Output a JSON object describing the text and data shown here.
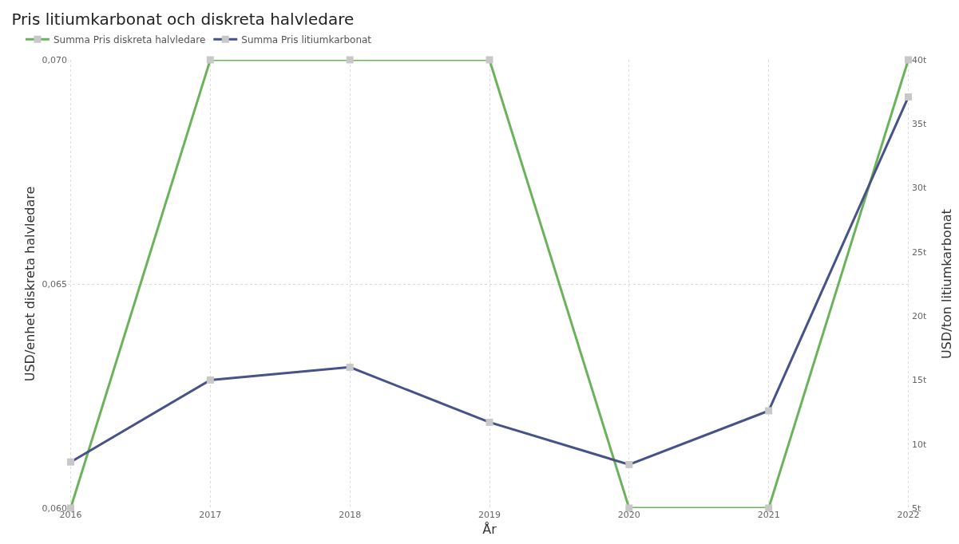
{
  "chart_data": {
    "type": "line",
    "title": "Pris litiumkarbonat och diskreta halvledare",
    "xlabel": "År",
    "ylabel": "USD/enhet diskreta halvledare",
    "y2label": "USD/ton litiumkarbonat",
    "categories": [
      "2016",
      "2017",
      "2018",
      "2019",
      "2020",
      "2021",
      "2022"
    ],
    "series": [
      {
        "name": "Summa Pris diskreta halvledare",
        "color": "#6bb35a",
        "values": [
          0.06,
          0.07,
          0.07,
          0.07,
          0.06,
          0.06,
          0.07
        ]
      },
      {
        "name": "Summa Pris litiumkarbonat",
        "color": "#465288",
        "axis": "y2",
        "values": [
          8.6,
          15,
          16,
          11.7,
          8.4,
          12.6,
          37.1
        ]
      }
    ],
    "ylim": [
      0.06,
      0.07
    ],
    "yticks": [
      {
        "value": 0.06,
        "label": "0,060"
      },
      {
        "value": 0.065,
        "label": "0,065"
      },
      {
        "value": 0.07,
        "label": "0,070"
      }
    ],
    "y2lim": [
      5,
      40
    ],
    "y2ticks": [
      {
        "value": 5,
        "label": "5t"
      },
      {
        "value": 10,
        "label": "10t"
      },
      {
        "value": 15,
        "label": "15t"
      },
      {
        "value": 20,
        "label": "20t"
      },
      {
        "value": 25,
        "label": "25t"
      },
      {
        "value": 30,
        "label": "30t"
      },
      {
        "value": 35,
        "label": "35t"
      },
      {
        "value": 40,
        "label": "40t"
      }
    ],
    "grid": true,
    "legend": "top left",
    "marker": "square",
    "line_style": "solid"
  }
}
